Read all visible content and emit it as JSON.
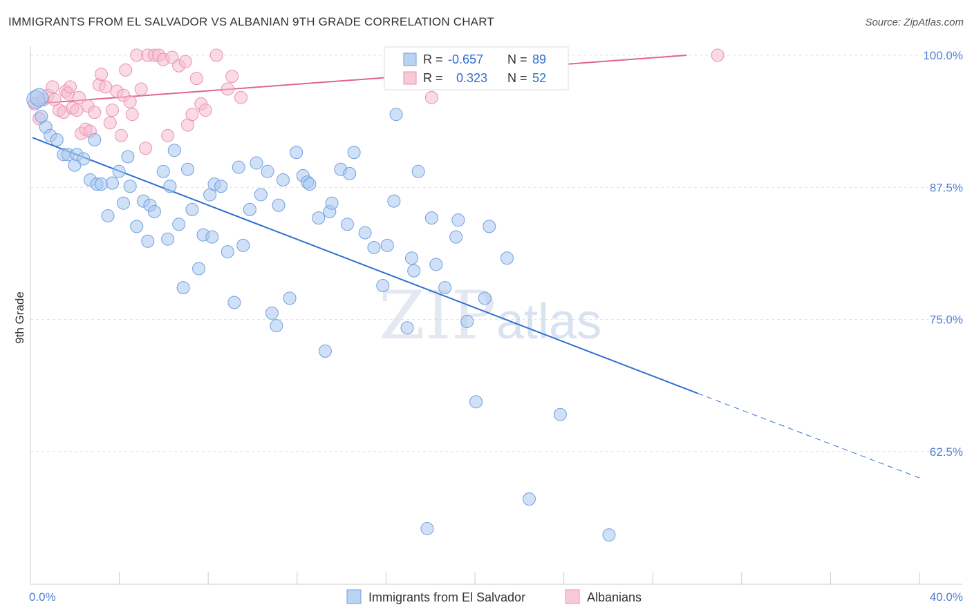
{
  "title": "IMMIGRANTS FROM EL SALVADOR VS ALBANIAN 9TH GRADE CORRELATION CHART",
  "source": "Source: ZipAtlas.com",
  "watermark": {
    "zip": "ZIP",
    "atlas": "atlas"
  },
  "colors": {
    "salvador_fill": "#aac8f0",
    "salvador_stroke": "#6e9fe0",
    "salvador_line": "#2f6fd0",
    "albanian_fill": "#f6bcd0",
    "albanian_stroke": "#ec8fb0",
    "albanian_line": "#e0658f",
    "grid": "#e2e2e2",
    "axis": "#cccccc",
    "tick_text": "#4f7fd0"
  },
  "legend": {
    "rows": [
      {
        "r_label": "R =",
        "r_value": "-0.657",
        "n_label": "N =",
        "n_value": "89"
      },
      {
        "r_label": "R =",
        "r_value": "0.323",
        "n_label": "N =",
        "n_value": "52"
      }
    ]
  },
  "chart_data": {
    "type": "scatter",
    "title": "IMMIGRANTS FROM EL SALVADOR VS ALBANIAN 9TH GRADE CORRELATION CHART",
    "xlabel": "",
    "ylabel": "9th Grade",
    "xlim": [
      0,
      40
    ],
    "ylim": [
      50,
      100.5
    ],
    "x_tick_labels": [
      "0.0%",
      "40.0%"
    ],
    "y_ticks": [
      62.5,
      75.0,
      87.5,
      100.0
    ],
    "y_tick_labels": [
      "62.5%",
      "75.0%",
      "87.5%",
      "100.0%"
    ],
    "grid": true,
    "legend_position": "top-center",
    "series": [
      {
        "name": "Immigrants from El Salvador",
        "R": -0.657,
        "N": 89,
        "trend": {
          "x0": 0,
          "y0": 92.2,
          "x1": 30,
          "y1": 68.0,
          "dashed_to_x": 40,
          "dashed_to_y": 60.0
        },
        "points": [
          [
            0.15,
            95.8
          ],
          [
            0.4,
            94.2
          ],
          [
            0.6,
            93.2
          ],
          [
            0.8,
            92.4
          ],
          [
            1.1,
            92.0
          ],
          [
            1.4,
            90.6
          ],
          [
            1.6,
            90.6
          ],
          [
            1.9,
            89.6
          ],
          [
            2.0,
            90.6
          ],
          [
            2.3,
            90.2
          ],
          [
            2.6,
            88.2
          ],
          [
            2.8,
            92.0
          ],
          [
            2.9,
            87.8
          ],
          [
            3.1,
            87.8
          ],
          [
            3.4,
            84.8
          ],
          [
            3.6,
            87.9
          ],
          [
            3.9,
            89.0
          ],
          [
            4.1,
            86.0
          ],
          [
            4.3,
            90.4
          ],
          [
            4.4,
            87.6
          ],
          [
            4.7,
            83.8
          ],
          [
            5.0,
            86.2
          ],
          [
            5.2,
            82.4
          ],
          [
            5.3,
            85.8
          ],
          [
            5.5,
            85.2
          ],
          [
            5.9,
            89.0
          ],
          [
            6.1,
            82.6
          ],
          [
            6.2,
            87.6
          ],
          [
            6.4,
            91.0
          ],
          [
            6.6,
            84.0
          ],
          [
            6.8,
            78.0
          ],
          [
            7.0,
            89.2
          ],
          [
            7.2,
            85.4
          ],
          [
            7.5,
            79.8
          ],
          [
            7.7,
            83.0
          ],
          [
            8.0,
            86.8
          ],
          [
            8.1,
            82.8
          ],
          [
            8.2,
            87.8
          ],
          [
            8.5,
            87.6
          ],
          [
            8.8,
            81.4
          ],
          [
            9.1,
            76.6
          ],
          [
            9.3,
            89.4
          ],
          [
            9.5,
            82.0
          ],
          [
            9.8,
            85.4
          ],
          [
            10.1,
            89.8
          ],
          [
            10.3,
            86.8
          ],
          [
            10.6,
            89.0
          ],
          [
            10.8,
            75.6
          ],
          [
            11.0,
            74.4
          ],
          [
            11.1,
            85.8
          ],
          [
            11.3,
            88.2
          ],
          [
            11.6,
            77.0
          ],
          [
            11.9,
            90.8
          ],
          [
            12.2,
            88.6
          ],
          [
            12.4,
            88.0
          ],
          [
            12.5,
            87.8
          ],
          [
            12.9,
            84.6
          ],
          [
            13.2,
            72.0
          ],
          [
            13.4,
            85.2
          ],
          [
            13.5,
            86.0
          ],
          [
            13.9,
            89.2
          ],
          [
            14.2,
            84.0
          ],
          [
            14.3,
            88.8
          ],
          [
            14.5,
            90.8
          ],
          [
            15.0,
            83.2
          ],
          [
            15.4,
            81.8
          ],
          [
            15.8,
            78.2
          ],
          [
            16.0,
            82.0
          ],
          [
            16.3,
            86.2
          ],
          [
            16.4,
            94.4
          ],
          [
            16.9,
            74.2
          ],
          [
            17.1,
            80.8
          ],
          [
            17.2,
            79.6
          ],
          [
            17.4,
            89.0
          ],
          [
            17.8,
            55.2
          ],
          [
            18.0,
            84.6
          ],
          [
            18.2,
            80.2
          ],
          [
            18.6,
            78.0
          ],
          [
            19.1,
            82.8
          ],
          [
            19.2,
            84.4
          ],
          [
            19.6,
            74.8
          ],
          [
            20.0,
            67.2
          ],
          [
            20.6,
            83.8
          ],
          [
            21.4,
            80.8
          ],
          [
            20.4,
            77.0
          ],
          [
            22.4,
            58.0
          ],
          [
            23.8,
            66.0
          ],
          [
            26.0,
            54.6
          ],
          [
            0.3,
            96.0
          ]
        ]
      },
      {
        "name": "Albanians",
        "R": 0.323,
        "N": 52,
        "trend": {
          "x0": 0,
          "y0": 95.4,
          "x1": 29.5,
          "y1": 100.0
        },
        "points": [
          [
            0.1,
            95.4
          ],
          [
            0.3,
            94.0
          ],
          [
            0.5,
            95.8
          ],
          [
            0.7,
            96.2
          ],
          [
            0.9,
            97.0
          ],
          [
            1.0,
            95.8
          ],
          [
            1.2,
            94.8
          ],
          [
            1.4,
            94.6
          ],
          [
            1.5,
            96.6
          ],
          [
            1.6,
            96.4
          ],
          [
            1.7,
            97.0
          ],
          [
            1.8,
            95.0
          ],
          [
            2.0,
            94.8
          ],
          [
            2.1,
            96.0
          ],
          [
            2.2,
            92.6
          ],
          [
            2.4,
            93.0
          ],
          [
            2.5,
            95.2
          ],
          [
            2.6,
            92.8
          ],
          [
            2.8,
            94.6
          ],
          [
            3.0,
            97.2
          ],
          [
            3.1,
            98.2
          ],
          [
            3.3,
            97.0
          ],
          [
            3.5,
            93.6
          ],
          [
            3.6,
            94.8
          ],
          [
            3.8,
            96.6
          ],
          [
            4.0,
            92.4
          ],
          [
            4.1,
            96.2
          ],
          [
            4.2,
            98.6
          ],
          [
            4.4,
            95.6
          ],
          [
            4.5,
            94.4
          ],
          [
            4.7,
            100.0
          ],
          [
            4.9,
            96.8
          ],
          [
            5.1,
            91.2
          ],
          [
            5.2,
            100.0
          ],
          [
            5.5,
            100.0
          ],
          [
            5.7,
            100.0
          ],
          [
            5.9,
            99.6
          ],
          [
            6.1,
            92.4
          ],
          [
            6.3,
            99.8
          ],
          [
            6.6,
            99.0
          ],
          [
            6.9,
            99.4
          ],
          [
            7.0,
            93.4
          ],
          [
            7.2,
            94.4
          ],
          [
            7.4,
            97.8
          ],
          [
            7.6,
            95.4
          ],
          [
            7.8,
            94.8
          ],
          [
            8.3,
            100.0
          ],
          [
            8.8,
            96.8
          ],
          [
            9.0,
            98.0
          ],
          [
            9.4,
            96.0
          ],
          [
            18.0,
            96.0
          ],
          [
            30.9,
            100.0
          ]
        ]
      }
    ]
  }
}
